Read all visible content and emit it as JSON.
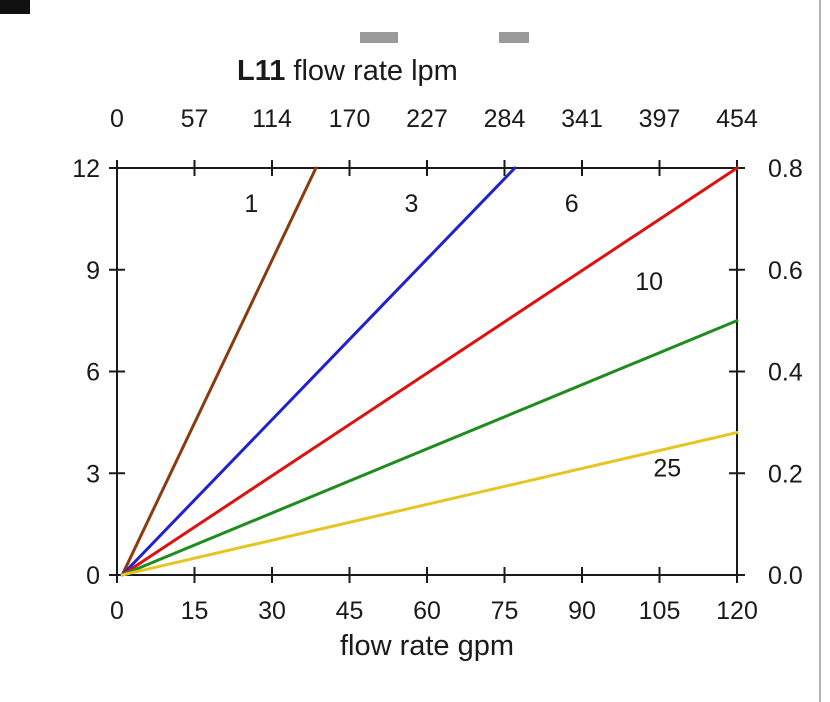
{
  "page": {
    "background": "#ffffff",
    "axis_color": "#1a1a1a"
  },
  "chart_data": {
    "type": "line",
    "title": {
      "bold": "L11",
      "rest": " flow rate lpm"
    },
    "x_top": {
      "label": "L11 flow rate lpm",
      "ticks": [
        "0",
        "57",
        "114",
        "170",
        "227",
        "284",
        "341",
        "397",
        "454"
      ],
      "units": "lpm"
    },
    "x_bottom": {
      "label": "flow rate gpm",
      "ticks": [
        0,
        15,
        30,
        45,
        60,
        75,
        90,
        105,
        120
      ],
      "range": [
        0,
        120
      ],
      "units": "gpm"
    },
    "y_left": {
      "ticks": [
        0,
        3,
        6,
        9,
        12
      ],
      "range": [
        0,
        12
      ]
    },
    "y_right": {
      "ticks": [
        "0.0",
        "0.2",
        "0.4",
        "0.6",
        "0.8"
      ]
    },
    "grid": false,
    "legend": "inline-labels",
    "series": [
      {
        "name": "1",
        "color": "#8b3a10",
        "points": [
          [
            1,
            0
          ],
          [
            38.5,
            12
          ]
        ],
        "label_pos": [
          26,
          10.7
        ]
      },
      {
        "name": "3",
        "color": "#2222cc",
        "points": [
          [
            1,
            0
          ],
          [
            77,
            12
          ]
        ],
        "label_pos": [
          57,
          10.7
        ]
      },
      {
        "name": "6",
        "color": "#dd1111",
        "points": [
          [
            1,
            0
          ],
          [
            120,
            12
          ]
        ],
        "label_pos": [
          88,
          10.7
        ]
      },
      {
        "name": "10",
        "color": "#1e8c1e",
        "points": [
          [
            1,
            0
          ],
          [
            120,
            7.5
          ]
        ],
        "label_pos": [
          103,
          8.4
        ]
      },
      {
        "name": "25",
        "color": "#e6c522",
        "points": [
          [
            1,
            0
          ],
          [
            120,
            4.2
          ]
        ],
        "label_pos": [
          106.5,
          2.9
        ]
      }
    ]
  }
}
